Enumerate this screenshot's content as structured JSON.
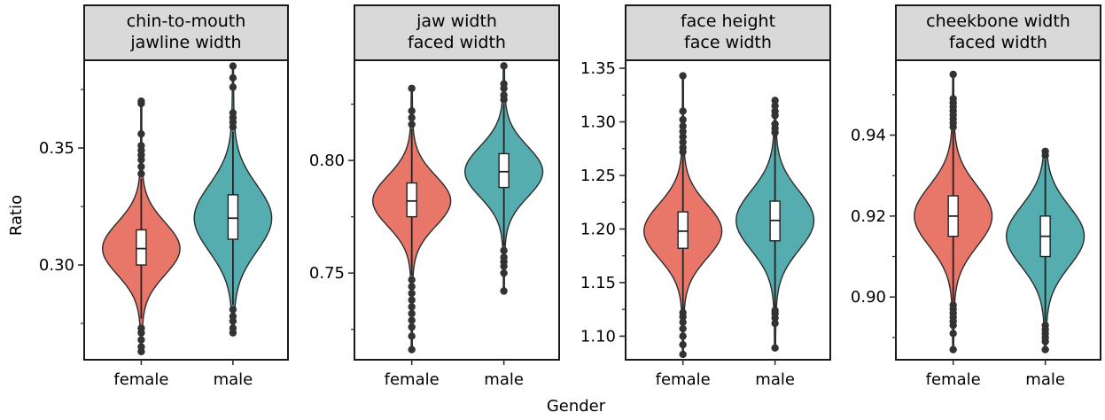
{
  "chart_data": {
    "type": "violin",
    "xlabel": "Gender",
    "ylabel": "Ratio",
    "categories": [
      "female",
      "male"
    ],
    "colors": {
      "female": "#e8776a",
      "male": "#56adaf"
    },
    "panels": [
      {
        "title_lines": [
          "chin-to-mouth",
          "jawline width"
        ],
        "ylim": [
          0.2595,
          0.3875
        ],
        "yticks": [
          0.3,
          0.35
        ],
        "ytick_labels": [
          "0.30",
          "0.35"
        ],
        "groups": [
          {
            "name": "female",
            "min": 0.263,
            "q1": 0.3,
            "median": 0.307,
            "q3": 0.315,
            "max": 0.37,
            "whisker_low": 0.277,
            "whisker_high": 0.337,
            "outliers": [
              0.263,
              0.265,
              0.268,
              0.271,
              0.273,
              0.339,
              0.342,
              0.345,
              0.347,
              0.349,
              0.351,
              0.356,
              0.369,
              0.37
            ]
          },
          {
            "name": "male",
            "min": 0.271,
            "q1": 0.311,
            "median": 0.32,
            "q3": 0.33,
            "max": 0.385,
            "whisker_low": 0.283,
            "whisker_high": 0.357,
            "outliers": [
              0.271,
              0.273,
              0.276,
              0.278,
              0.281,
              0.359,
              0.361,
              0.363,
              0.365,
              0.376,
              0.38,
              0.385
            ]
          }
        ]
      },
      {
        "title_lines": [
          "jaw width",
          "faced width"
        ],
        "ylim": [
          0.7115,
          0.8445
        ],
        "yticks": [
          0.75,
          0.8
        ],
        "ytick_labels": [
          "0.75",
          "0.80"
        ],
        "groups": [
          {
            "name": "female",
            "min": 0.716,
            "q1": 0.775,
            "median": 0.782,
            "q3": 0.79,
            "max": 0.832,
            "whisker_low": 0.749,
            "whisker_high": 0.814,
            "outliers": [
              0.716,
              0.722,
              0.726,
              0.729,
              0.732,
              0.735,
              0.738,
              0.741,
              0.744,
              0.747,
              0.816,
              0.819,
              0.822,
              0.832
            ]
          },
          {
            "name": "male",
            "min": 0.742,
            "q1": 0.788,
            "median": 0.795,
            "q3": 0.803,
            "max": 0.842,
            "whisker_low": 0.762,
            "whisker_high": 0.825,
            "outliers": [
              0.742,
              0.75,
              0.753,
              0.755,
              0.757,
              0.76,
              0.827,
              0.829,
              0.832,
              0.834,
              0.842
            ]
          }
        ]
      },
      {
        "title_lines": [
          "face height",
          "face width"
        ],
        "ylim": [
          1.078,
          1.3575
        ],
        "yticks": [
          1.1,
          1.15,
          1.2,
          1.25,
          1.3,
          1.35
        ],
        "ytick_labels": [
          "1.10",
          "1.15",
          "1.20",
          "1.25",
          "1.30",
          "1.35"
        ],
        "groups": [
          {
            "name": "female",
            "min": 1.083,
            "q1": 1.182,
            "median": 1.198,
            "q3": 1.216,
            "max": 1.343,
            "whisker_low": 1.125,
            "whisker_high": 1.27,
            "outliers": [
              1.083,
              1.092,
              1.1,
              1.107,
              1.113,
              1.118,
              1.122,
              1.272,
              1.276,
              1.281,
              1.286,
              1.291,
              1.296,
              1.302,
              1.31,
              1.343
            ]
          },
          {
            "name": "male",
            "min": 1.089,
            "q1": 1.189,
            "median": 1.208,
            "q3": 1.226,
            "max": 1.32,
            "whisker_low": 1.127,
            "whisker_high": 1.288,
            "outliers": [
              1.089,
              1.112,
              1.117,
              1.121,
              1.124,
              1.29,
              1.294,
              1.298,
              1.306,
              1.31,
              1.315,
              1.32
            ]
          }
        ]
      },
      {
        "title_lines": [
          "cheekbone width",
          "faced width"
        ],
        "ylim": [
          0.8845,
          0.9585
        ],
        "yticks": [
          0.9,
          0.92,
          0.94
        ],
        "ytick_labels": [
          "0.90",
          "0.92",
          "0.94"
        ],
        "groups": [
          {
            "name": "female",
            "min": 0.887,
            "q1": 0.915,
            "median": 0.92,
            "q3": 0.925,
            "max": 0.955,
            "whisker_low": 0.899,
            "whisker_high": 0.941,
            "outliers": [
              0.887,
              0.891,
              0.893,
              0.894,
              0.895,
              0.896,
              0.897,
              0.898,
              0.942,
              0.943,
              0.944,
              0.945,
              0.946,
              0.947,
              0.948,
              0.949,
              0.955
            ]
          },
          {
            "name": "male",
            "min": 0.887,
            "q1": 0.91,
            "median": 0.915,
            "q3": 0.92,
            "max": 0.936,
            "whisker_low": 0.894,
            "whisker_high": 0.934,
            "outliers": [
              0.887,
              0.889,
              0.89,
              0.891,
              0.892,
              0.893,
              0.935,
              0.936
            ]
          }
        ]
      }
    ]
  }
}
